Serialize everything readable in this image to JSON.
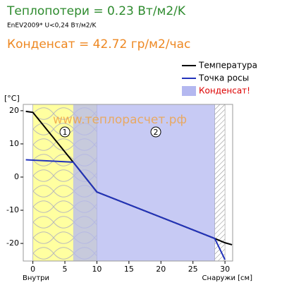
{
  "title": "Теплопотери = 0.23 Вт/м2/K",
  "subtitle": "EnEV2009* U<0,24 Вт/м2/K",
  "annotation": "Конденсат = 42.72 гр/м2/час",
  "watermark": "www.теплорасчет.рф",
  "chart_data": {
    "type": "line",
    "y_label": "[°C]",
    "x_label_left": "Внутри",
    "x_label_right": "Снаружи [см]",
    "xlim": [
      -1.5,
      31.2
    ],
    "ylim": [
      -25.3,
      21.9
    ],
    "xticks": [
      0,
      5,
      10,
      15,
      20,
      25,
      30
    ],
    "yticks": [
      20,
      10,
      0,
      -10,
      -20
    ],
    "series": [
      {
        "name": "Температура",
        "color": "#000000",
        "x": [
          -1.1,
          0,
          6.3,
          10,
          28.4,
          30,
          31.1
        ],
        "values": [
          19.8,
          19.5,
          4.5,
          -4.5,
          -18.5,
          -19.8,
          -20.4
        ]
      },
      {
        "name": "Точка росы",
        "color": "#2233bb",
        "x": [
          -1.1,
          6.3,
          10,
          28.4,
          30
        ],
        "values": [
          5.2,
          4.5,
          -4.5,
          -18.5,
          -24.9
        ]
      }
    ],
    "regions": [
      {
        "name": "Конденсат!",
        "color": "#b4b8f0",
        "x": [
          6.3,
          28.4
        ]
      }
    ],
    "layers": [
      {
        "label": "1",
        "x": [
          0,
          10
        ],
        "pattern": "insulation"
      },
      {
        "label": "2",
        "x": [
          10,
          28.4
        ],
        "pattern": "plain"
      },
      {
        "x": [
          28.4,
          30
        ],
        "pattern": "hatch"
      }
    ]
  }
}
